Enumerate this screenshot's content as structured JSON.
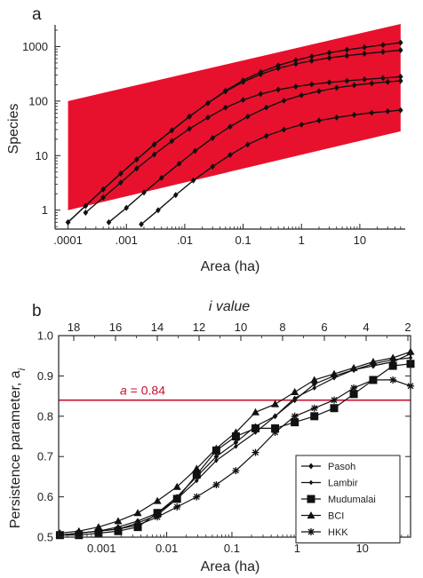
{
  "chart_data": [
    {
      "panel_label": "a",
      "type": "line",
      "title": "",
      "xlabel": "Area (ha)",
      "ylabel": "Species",
      "x_scale": "log",
      "y_scale": "log",
      "xlim": [
        6e-05,
        60
      ],
      "ylim": [
        0.45,
        2500
      ],
      "x_ticks": [
        0.0001,
        0.001,
        0.01,
        0.1,
        1,
        10
      ],
      "x_tick_labels": [
        ".0001",
        ".001",
        ".01",
        "0.1",
        "1",
        "10"
      ],
      "y_ticks": [
        1,
        10,
        100,
        1000
      ],
      "y_tick_labels": [
        "1",
        "10",
        "100",
        "1000"
      ],
      "grid": false,
      "band": {
        "color": "#e8112d",
        "lower": [
          [
            0.0001,
            1
          ],
          [
            50,
            28
          ]
        ],
        "upper": [
          [
            0.0001,
            100
          ],
          [
            50,
            2600
          ]
        ]
      },
      "series": [
        {
          "values": [
            [
              0.0001,
              0.6
            ],
            [
              0.0002,
              1.2
            ],
            [
              0.0004,
              2.4
            ],
            [
              0.0008,
              4.7
            ],
            [
              0.0015,
              8.5
            ],
            [
              0.003,
              16
            ],
            [
              0.006,
              29
            ],
            [
              0.012,
              52
            ],
            [
              0.025,
              92
            ],
            [
              0.05,
              155
            ],
            [
              0.1,
              240
            ],
            [
              0.2,
              340
            ],
            [
              0.4,
              450
            ],
            [
              0.8,
              560
            ],
            [
              1.5,
              660
            ],
            [
              3,
              770
            ],
            [
              6,
              870
            ],
            [
              12,
              970
            ],
            [
              25,
              1070
            ],
            [
              50,
              1180
            ]
          ]
        },
        {
          "values": [
            [
              0.0001,
              0.6
            ],
            [
              0.0002,
              1.2
            ],
            [
              0.0004,
              2.4
            ],
            [
              0.0008,
              4.7
            ],
            [
              0.0015,
              8.5
            ],
            [
              0.003,
              16
            ],
            [
              0.006,
              29
            ],
            [
              0.012,
              52
            ],
            [
              0.025,
              92
            ],
            [
              0.05,
              150
            ],
            [
              0.1,
              225
            ],
            [
              0.2,
              310
            ],
            [
              0.4,
              400
            ],
            [
              0.8,
              480
            ],
            [
              1.5,
              550
            ],
            [
              3,
              620
            ],
            [
              6,
              680
            ],
            [
              12,
              740
            ],
            [
              25,
              800
            ],
            [
              50,
              860
            ]
          ]
        },
        {
          "values": [
            [
              0.0002,
              0.9
            ],
            [
              0.0004,
              1.7
            ],
            [
              0.0008,
              3.2
            ],
            [
              0.0015,
              5.8
            ],
            [
              0.003,
              10.5
            ],
            [
              0.006,
              18.5
            ],
            [
              0.012,
              31
            ],
            [
              0.025,
              50
            ],
            [
              0.05,
              76
            ],
            [
              0.1,
              105
            ],
            [
              0.2,
              135
            ],
            [
              0.4,
              162
            ],
            [
              0.8,
              185
            ],
            [
              1.5,
              203
            ],
            [
              3,
              220
            ],
            [
              6,
              235
            ],
            [
              12,
              250
            ],
            [
              25,
              265
            ],
            [
              50,
              280
            ]
          ]
        },
        {
          "values": [
            [
              0.0005,
              0.6
            ],
            [
              0.001,
              1.1
            ],
            [
              0.002,
              2.1
            ],
            [
              0.004,
              3.9
            ],
            [
              0.008,
              7.1
            ],
            [
              0.015,
              12.2
            ],
            [
              0.03,
              21
            ],
            [
              0.06,
              34
            ],
            [
              0.12,
              52
            ],
            [
              0.25,
              76
            ],
            [
              0.5,
              102
            ],
            [
              1,
              128
            ],
            [
              2,
              152
            ],
            [
              4,
              175
            ],
            [
              8,
              195
            ],
            [
              16,
              212
            ],
            [
              30,
              225
            ],
            [
              50,
              235
            ]
          ]
        },
        {
          "values": [
            [
              0.0018,
              0.55
            ],
            [
              0.0035,
              1
            ],
            [
              0.007,
              1.9
            ],
            [
              0.014,
              3.5
            ],
            [
              0.03,
              6.3
            ],
            [
              0.06,
              10.3
            ],
            [
              0.12,
              16
            ],
            [
              0.25,
              23
            ],
            [
              0.5,
              30
            ],
            [
              1,
              37
            ],
            [
              2,
              44
            ],
            [
              4,
              50
            ],
            [
              8,
              56
            ],
            [
              16,
              61
            ],
            [
              30,
              65
            ],
            [
              50,
              68
            ]
          ]
        }
      ]
    },
    {
      "panel_label": "b",
      "type": "line",
      "title": "",
      "xlabel": "Area (ha)",
      "ylabel": "Persistence parameter, a",
      "ylabel_subscript": "i",
      "top_axis_label": "i value",
      "x_scale": "log",
      "xlim": [
        0.00022,
        55
      ],
      "ylim": [
        0.5,
        1.0
      ],
      "x_ticks": [
        0.001,
        0.01,
        0.1,
        1,
        10
      ],
      "x_tick_labels": [
        "0.001",
        "0.01",
        "0.1",
        "1",
        "10"
      ],
      "y_ticks": [
        0.5,
        0.6,
        0.7,
        0.8,
        0.9,
        1.0
      ],
      "y_tick_labels": [
        "0.5",
        "0.6",
        "0.7",
        "0.8",
        "0.9",
        "1.0"
      ],
      "top_ticks": [
        18,
        16,
        14,
        12,
        10,
        8,
        6,
        4,
        2
      ],
      "top_tick_labels": [
        "18",
        "16",
        "14",
        "12",
        "10",
        "8",
        "6",
        "4",
        "2"
      ],
      "grid": false,
      "reference_line": {
        "y": 0.84,
        "label_symbol": "a",
        "label_value": " = 0.84",
        "color": "#c8102e"
      },
      "legend": {
        "placement": "lower-right",
        "entries": [
          "Pasoh",
          "Lambir",
          "Mudumalai",
          "BCI",
          "HKK"
        ]
      },
      "x": [
        0.00023,
        0.00045,
        0.0009,
        0.0018,
        0.0036,
        0.0072,
        0.0144,
        0.0288,
        0.0576,
        0.115,
        0.23,
        0.46,
        0.92,
        1.84,
        3.7,
        7.4,
        14.7,
        29.5,
        55
      ],
      "series": [
        {
          "name": "Pasoh",
          "marker": "diamond",
          "values": [
            0.505,
            0.51,
            0.515,
            0.525,
            0.54,
            0.56,
            0.6,
            0.65,
            0.7,
            0.735,
            0.775,
            0.8,
            0.84,
            0.88,
            0.9,
            0.915,
            0.925,
            0.935,
            0.955
          ]
        },
        {
          "name": "Lambir",
          "marker": "diamond-small",
          "values": [
            0.505,
            0.51,
            0.515,
            0.52,
            0.535,
            0.555,
            0.595,
            0.64,
            0.69,
            0.725,
            0.76,
            0.8,
            0.845,
            0.87,
            0.895,
            0.915,
            0.93,
            0.94,
            0.945
          ]
        },
        {
          "name": "Mudumalai",
          "marker": "square",
          "values": [
            0.505,
            0.505,
            0.51,
            0.515,
            0.525,
            0.56,
            0.595,
            0.655,
            0.715,
            0.75,
            0.77,
            0.77,
            0.785,
            0.8,
            0.82,
            0.855,
            0.89,
            0.925,
            0.93
          ]
        },
        {
          "name": "BCI",
          "marker": "triangle",
          "values": [
            0.51,
            0.515,
            0.525,
            0.54,
            0.56,
            0.59,
            0.625,
            0.67,
            0.72,
            0.76,
            0.81,
            0.83,
            0.86,
            0.89,
            0.905,
            0.92,
            0.935,
            0.945,
            0.96
          ]
        },
        {
          "name": "HKK",
          "marker": "cross",
          "values": [
            0.505,
            0.51,
            0.515,
            0.52,
            0.53,
            0.55,
            0.575,
            0.6,
            0.63,
            0.665,
            0.71,
            0.76,
            0.8,
            0.82,
            0.84,
            0.87,
            0.89,
            0.89,
            0.875
          ]
        }
      ]
    }
  ]
}
